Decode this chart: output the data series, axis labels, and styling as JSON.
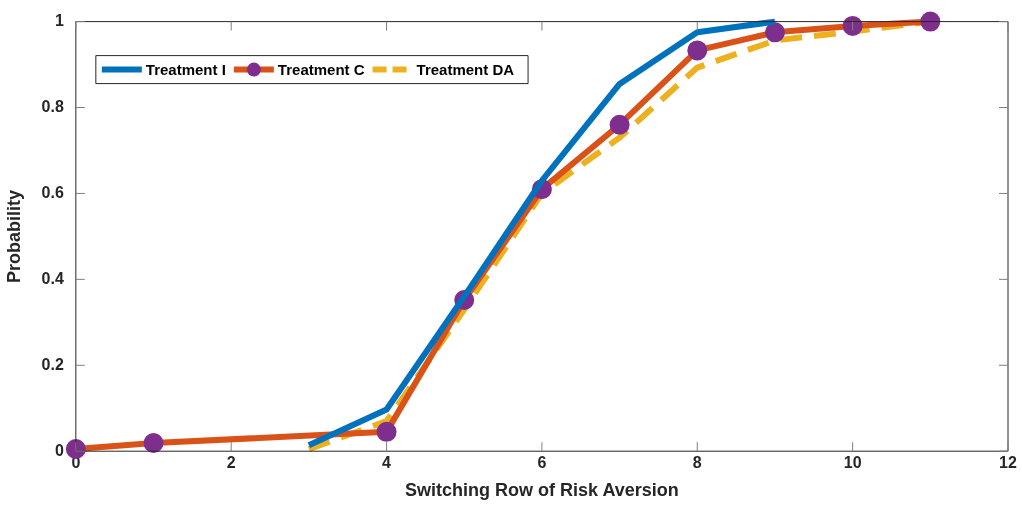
{
  "chart_data": {
    "type": "line",
    "xlabel": "Switching Row of Risk Aversion",
    "ylabel": "Probability",
    "xlim": [
      0,
      12
    ],
    "xticks": [
      0,
      2,
      4,
      6,
      8,
      10,
      12
    ],
    "ylim": [
      0,
      1
    ],
    "yticks": [
      0,
      0.2,
      0.4,
      0.6,
      0.8,
      1
    ],
    "grid": false,
    "legend": "top left",
    "series": [
      {
        "name": "Treatment I",
        "color": "#0072bd",
        "line_style": "solid",
        "marker": "none",
        "x": [
          3,
          4,
          5,
          6,
          7,
          8,
          9
        ],
        "values": [
          0.014,
          0.097,
          0.36,
          0.63,
          0.855,
          0.975,
          1.0
        ]
      },
      {
        "name": "Treatment C",
        "color": "#d95319",
        "line_style": "solid",
        "marker": "circle",
        "x": [
          0,
          1,
          4,
          5,
          6,
          7,
          8,
          9,
          10,
          11
        ],
        "values": [
          0.005,
          0.019,
          0.045,
          0.352,
          0.61,
          0.76,
          0.933,
          0.975,
          0.99,
          1.0
        ]
      },
      {
        "name": "Treatment DA",
        "color": "#edb120",
        "line_style": "dashed",
        "marker": "none",
        "x": [
          3,
          4,
          5,
          6,
          7,
          8,
          9,
          10,
          11
        ],
        "values": [
          0.005,
          0.07,
          0.33,
          0.6,
          0.73,
          0.893,
          0.956,
          0.977,
          1.0
        ]
      }
    ]
  }
}
